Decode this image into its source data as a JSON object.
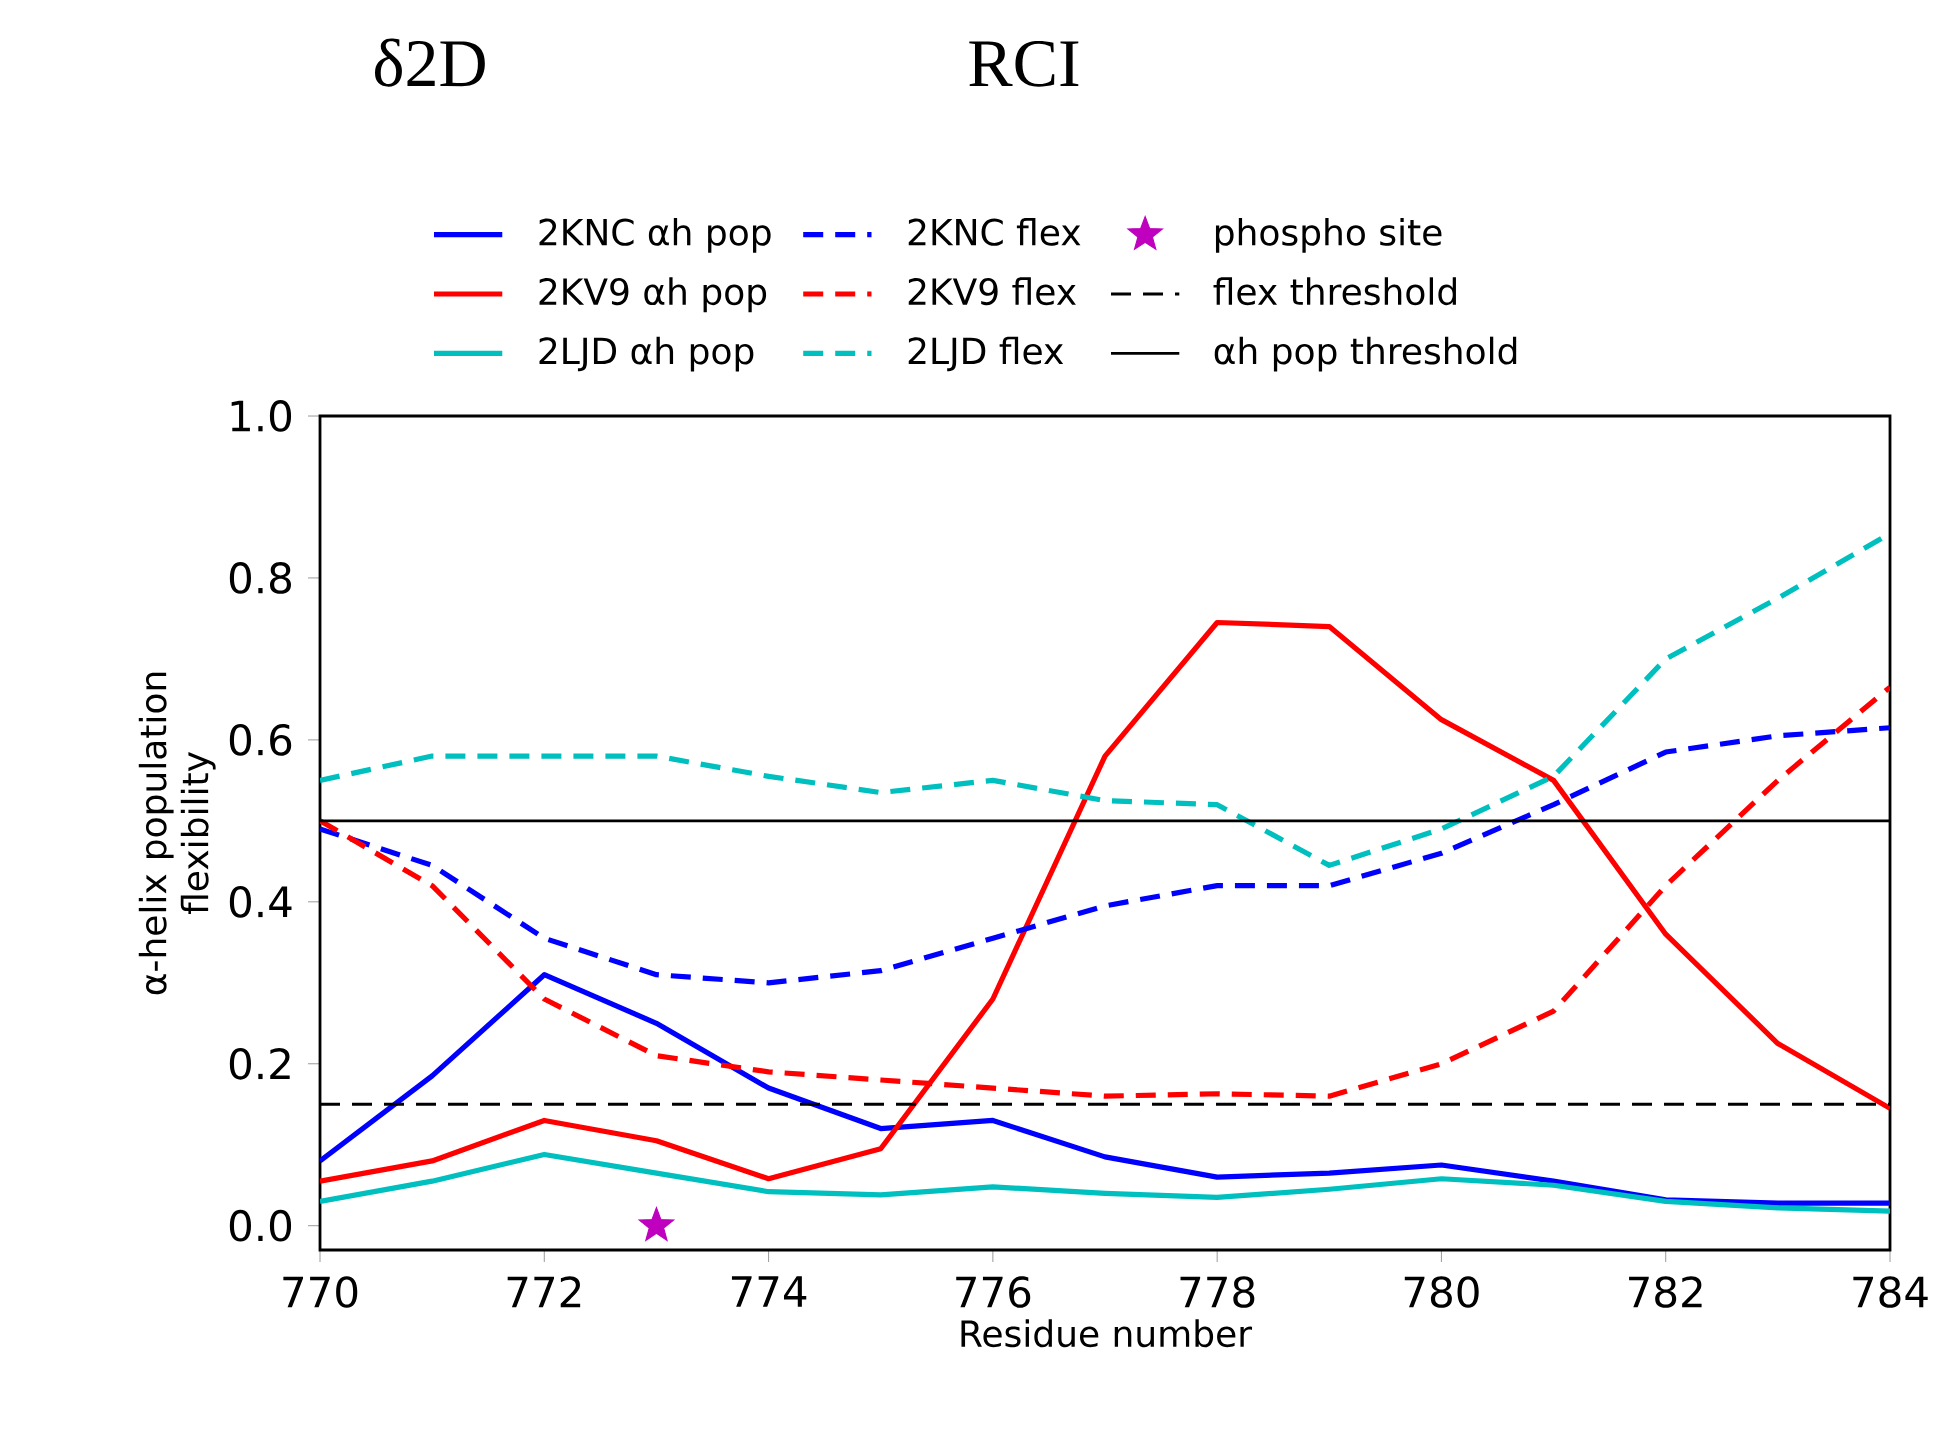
{
  "chart_data": {
    "type": "line",
    "annotations": [
      "δ2D",
      "RCI"
    ],
    "xlabel": "Residue number",
    "ylabel": "α-helix population flexibility",
    "x": [
      770,
      771,
      772,
      773,
      774,
      775,
      776,
      777,
      778,
      779,
      780,
      781,
      782,
      783,
      784
    ],
    "series": [
      {
        "name": "2KNC αh pop",
        "color": "#0000ff",
        "line_style": "solid",
        "values": [
          0.08,
          0.185,
          0.31,
          0.25,
          0.17,
          0.12,
          0.13,
          0.085,
          0.06,
          0.065,
          0.075,
          0.055,
          0.032,
          0.028,
          0.028
        ]
      },
      {
        "name": "2KV9 αh pop",
        "color": "#ff0000",
        "line_style": "solid",
        "values": [
          0.055,
          0.08,
          0.13,
          0.105,
          0.058,
          0.095,
          0.28,
          0.58,
          0.745,
          0.74,
          0.625,
          0.55,
          0.36,
          0.225,
          0.145
        ]
      },
      {
        "name": "2LJD αh pop",
        "color": "#00bfbf",
        "line_style": "solid",
        "values": [
          0.03,
          0.055,
          0.088,
          0.065,
          0.042,
          0.038,
          0.048,
          0.04,
          0.035,
          0.045,
          0.058,
          0.05,
          0.03,
          0.022,
          0.018
        ]
      },
      {
        "name": "2KNC flex",
        "color": "#0000ff",
        "line_style": "dashed",
        "values": [
          0.49,
          0.445,
          0.355,
          0.31,
          0.3,
          0.315,
          0.355,
          0.395,
          0.42,
          0.42,
          0.46,
          0.52,
          0.585,
          0.605,
          0.615
        ]
      },
      {
        "name": "2KV9 flex",
        "color": "#ff0000",
        "line_style": "dashed",
        "values": [
          0.5,
          0.42,
          0.28,
          0.21,
          0.19,
          0.18,
          0.17,
          0.16,
          0.163,
          0.16,
          0.2,
          0.265,
          0.42,
          0.55,
          0.665
        ]
      },
      {
        "name": "2LJD flex",
        "color": "#00bfbf",
        "line_style": "dashed",
        "values": [
          0.55,
          0.58,
          0.58,
          0.58,
          0.555,
          0.535,
          0.55,
          0.525,
          0.52,
          0.445,
          0.49,
          0.555,
          0.7,
          0.775,
          0.855
        ]
      },
      {
        "name": "phospho site",
        "type": "scatter",
        "marker": "star",
        "color": "#bf00bf",
        "x": [
          773
        ],
        "values": [
          0.0
        ]
      }
    ],
    "ref_lines": [
      {
        "axis": "y",
        "value": 0.15,
        "label": "flex threshold",
        "color": "#000000",
        "line_style": "dashed"
      },
      {
        "axis": "y",
        "value": 0.5,
        "label": "αh pop threshold",
        "color": "#000000",
        "line_style": "solid"
      }
    ],
    "xlim": [
      770,
      784
    ],
    "ylim": [
      -0.03,
      1.0
    ],
    "xticks": [
      770,
      772,
      774,
      776,
      778,
      780,
      782,
      784
    ],
    "yticks": [
      {
        "value": 0.0,
        "label": "0.0"
      },
      {
        "value": 0.2,
        "label": "0.2"
      },
      {
        "value": 0.4,
        "label": "0.4"
      },
      {
        "value": 0.6,
        "label": "0.6"
      },
      {
        "value": 0.8,
        "label": "0.8"
      },
      {
        "value": 1.0,
        "label": "1.0"
      }
    ],
    "legend": "top"
  }
}
